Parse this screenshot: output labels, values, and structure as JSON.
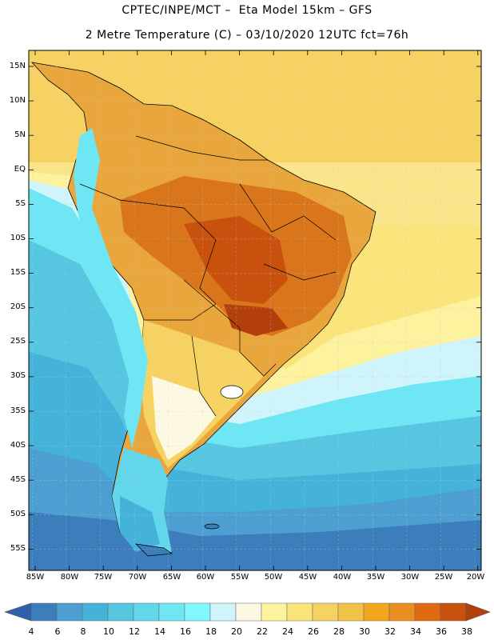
{
  "header": {
    "title_line1": "CPTEC/INPE/MCT –  Eta Model 15km – GFS",
    "title_line2": "2 Metre Temperature (C) – 03/10/2020 12UTC fct=76h"
  },
  "map": {
    "lat_labels": [
      "15N",
      "10N",
      "5N",
      "EQ",
      "5S",
      "10S",
      "15S",
      "20S",
      "25S",
      "30S",
      "35S",
      "40S",
      "45S",
      "50S",
      "55S"
    ],
    "lon_labels": [
      "85W",
      "80W",
      "75W",
      "70W",
      "65W",
      "60W",
      "55W",
      "50W",
      "45W",
      "40W",
      "35W",
      "30W",
      "25W",
      "20W"
    ],
    "ocean_color": "#62d0e4",
    "land_color": "#e9a63c"
  },
  "colorbar": {
    "ticks": [
      "4",
      "6",
      "8",
      "10",
      "12",
      "14",
      "16",
      "18",
      "20",
      "22",
      "24",
      "26",
      "28",
      "30",
      "32",
      "34",
      "36",
      "38"
    ],
    "colors": [
      "#2f61a8",
      "#3c7dbc",
      "#4d9fd1",
      "#45b2d9",
      "#57c6e0",
      "#62d6ea",
      "#6ee6f3",
      "#7ff9ff",
      "#cff4fb",
      "#fdf8e1",
      "#fdf29d",
      "#fbe47a",
      "#f5d262",
      "#f0c245",
      "#f3a71f",
      "#ea8f1f",
      "#e1690f",
      "#c9510e",
      "#b3400c"
    ]
  }
}
